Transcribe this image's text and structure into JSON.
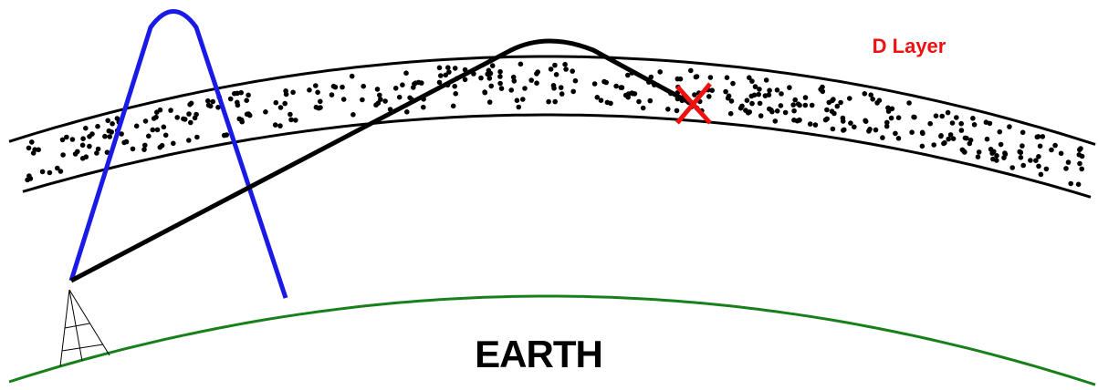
{
  "labels": {
    "layer": "D Layer",
    "ground": "EARTH"
  }
}
